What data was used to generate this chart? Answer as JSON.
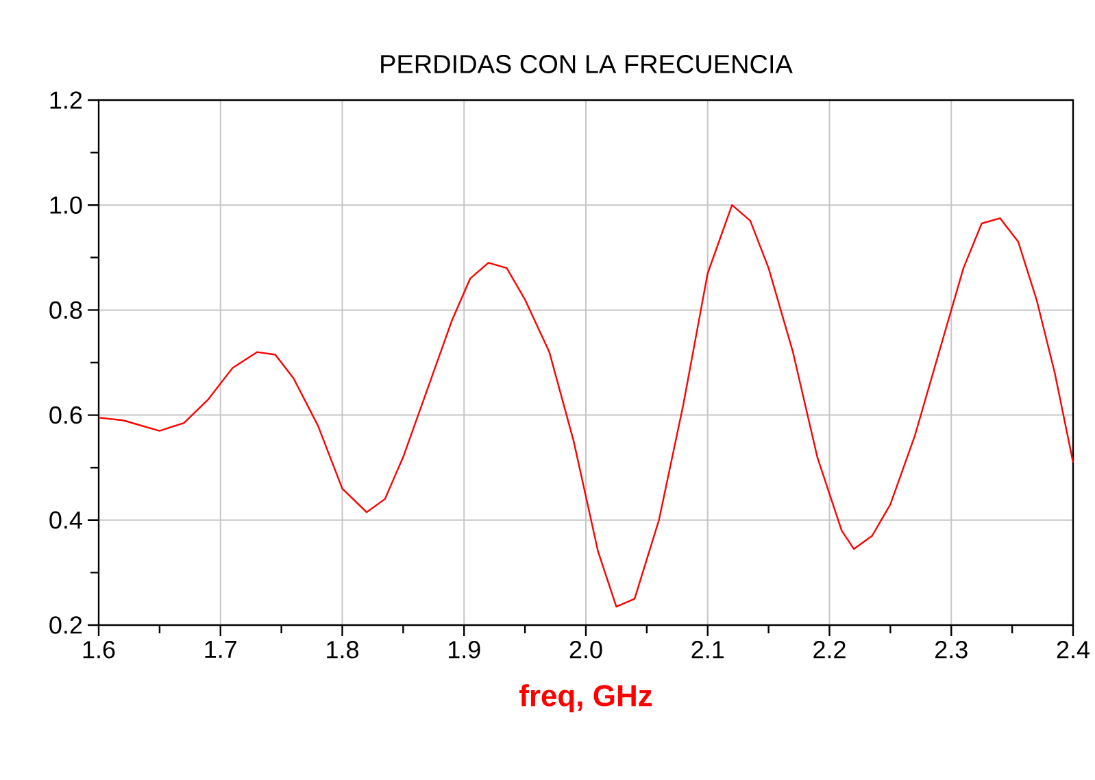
{
  "chart_data": {
    "type": "line",
    "title": "PERDIDAS CON LA FRECUENCIA",
    "xlabel": "freq, GHz",
    "x": [
      1.6,
      1.62,
      1.65,
      1.67,
      1.69,
      1.71,
      1.73,
      1.745,
      1.76,
      1.78,
      1.8,
      1.82,
      1.835,
      1.85,
      1.87,
      1.89,
      1.905,
      1.92,
      1.935,
      1.95,
      1.97,
      1.99,
      2.01,
      2.025,
      2.04,
      2.06,
      2.08,
      2.1,
      2.12,
      2.135,
      2.15,
      2.17,
      2.19,
      2.21,
      2.22,
      2.235,
      2.25,
      2.27,
      2.29,
      2.31,
      2.325,
      2.34,
      2.355,
      2.37,
      2.385,
      2.4
    ],
    "series": [
      {
        "color": "#ff0000",
        "values": [
          0.595,
          0.59,
          0.57,
          0.585,
          0.63,
          0.69,
          0.72,
          0.715,
          0.67,
          0.58,
          0.46,
          0.415,
          0.44,
          0.52,
          0.65,
          0.78,
          0.86,
          0.89,
          0.88,
          0.82,
          0.72,
          0.55,
          0.34,
          0.235,
          0.25,
          0.4,
          0.62,
          0.87,
          1.0,
          0.97,
          0.88,
          0.72,
          0.52,
          0.38,
          0.345,
          0.37,
          0.43,
          0.56,
          0.72,
          0.88,
          0.965,
          0.975,
          0.93,
          0.82,
          0.68,
          0.51
        ]
      }
    ],
    "xlim": [
      1.6,
      2.4
    ],
    "ylim": [
      0.2,
      1.2
    ],
    "xticks": [
      1.6,
      1.7,
      1.8,
      1.9,
      {
        "value": 2.0,
        "label": "2.0"
      },
      2.1,
      2.2,
      2.3,
      2.4
    ],
    "yticks": [
      0.2,
      0.4,
      0.6,
      0.8,
      {
        "value": 1.0,
        "label": "1.0"
      },
      1.2
    ],
    "grid": true,
    "marker": "none",
    "line_style": "solid"
  }
}
